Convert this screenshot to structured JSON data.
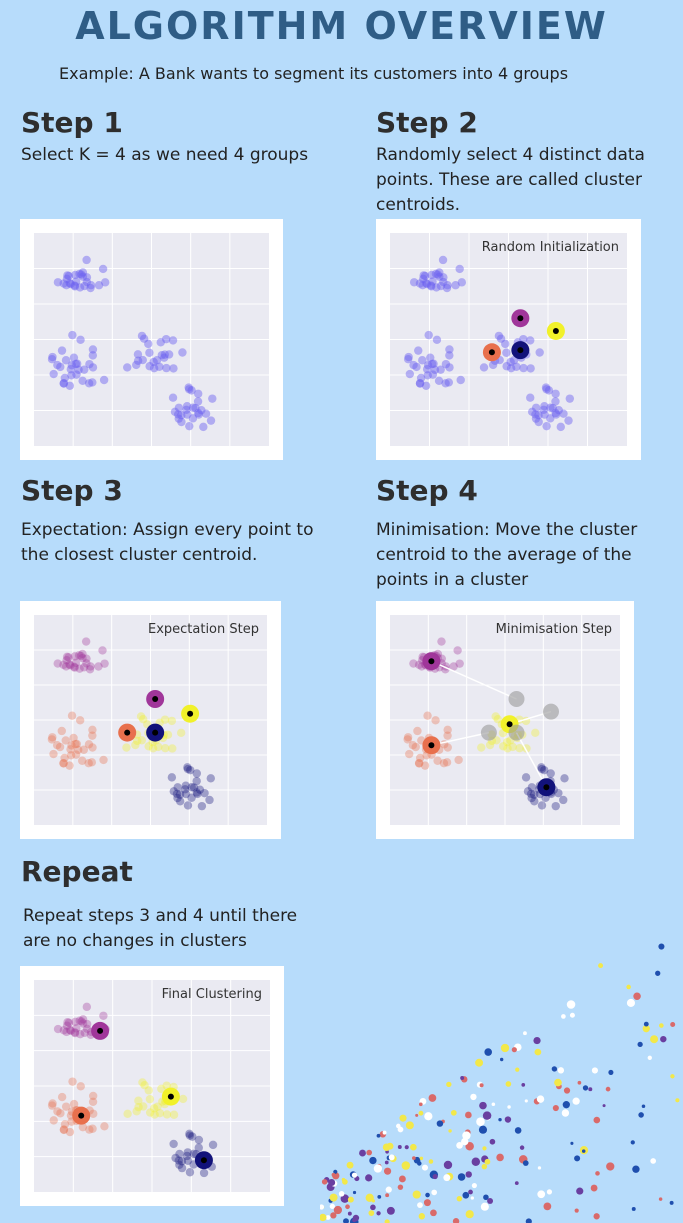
{
  "header": {
    "title": "ALGORITHM OVERVIEW",
    "subtitle": "Example: A Bank wants to segment its customers into 4 groups"
  },
  "steps": [
    {
      "heading": "Step 1",
      "text": "Select K = 4 as we need 4 groups"
    },
    {
      "heading": "Step 2",
      "text": "Randomly select 4 distinct data\npoints. These are called cluster\ncentroids.",
      "plot_label": "Random Initialization"
    },
    {
      "heading": "Step 3",
      "text": "Expectation: Assign every point to\nthe closest cluster centroid.",
      "plot_label": "Expectation Step"
    },
    {
      "heading": "Step 4",
      "text": "Minimisation: Move the cluster\ncentroid to the average of the\npoints in a cluster",
      "plot_label": "Minimisation Step"
    },
    {
      "heading": "Repeat",
      "text": "Repeat steps 3 and 4 until there\nare no changes in clusters",
      "plot_label": "Final Clustering"
    }
  ],
  "colors": {
    "background": "#b7dcfb",
    "title": "#2f5d86",
    "unassigned_point": "#6b5ff0",
    "cluster_purple": "#a0369a",
    "cluster_orange": "#e8704d",
    "cluster_yellow": "#f1f12a",
    "cluster_navy": "#12127a"
  }
}
